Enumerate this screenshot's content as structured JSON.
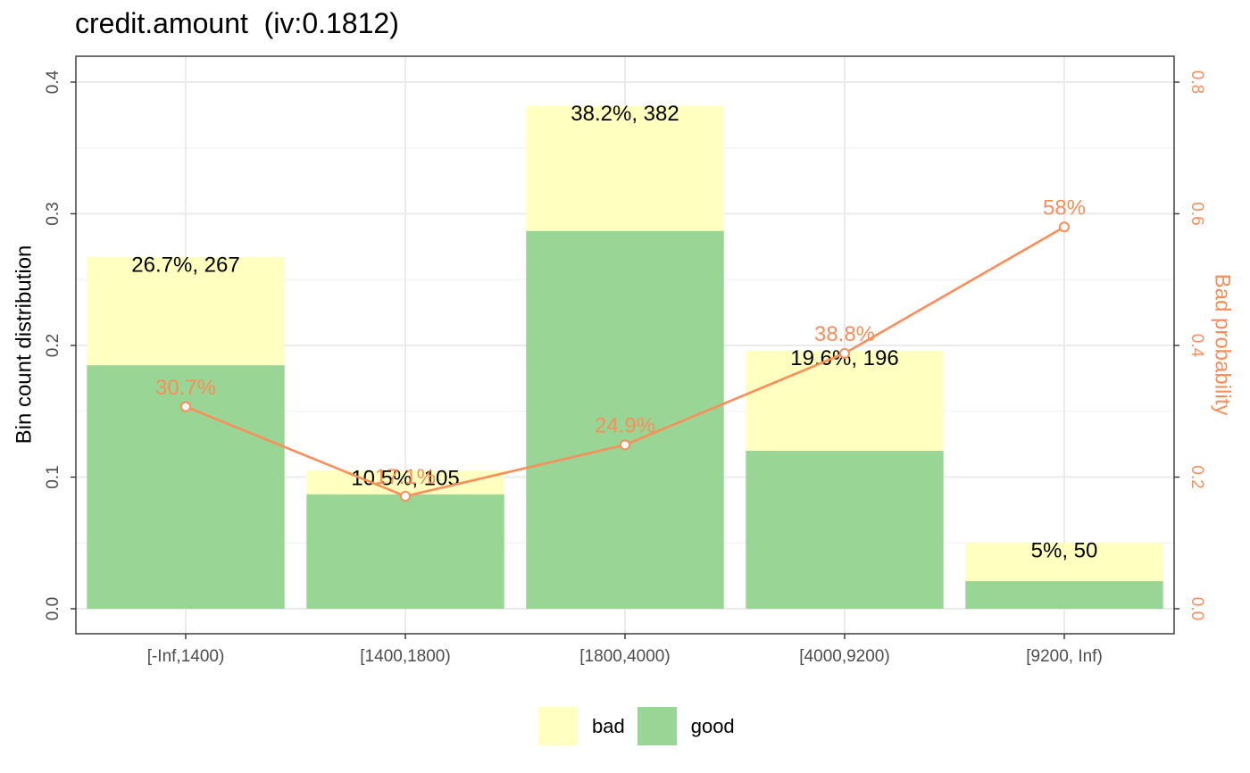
{
  "title": "credit.amount  (iv:0.1812)",
  "colors": {
    "bad": "#FFFFC0",
    "good": "#99D594",
    "line": "#FC8D59",
    "panel_border": "#333333",
    "grid_major": "#EBEBEB",
    "grid_minor": "#F3F3F3",
    "axis_text": "#4D4D4D"
  },
  "legend": {
    "position": "bottom",
    "items": [
      {
        "label": "bad",
        "color_key": "bad"
      },
      {
        "label": "good",
        "color_key": "good"
      }
    ]
  },
  "chart_data": {
    "type": "bar",
    "stacked": true,
    "title": "credit.amount  (iv:0.1812)",
    "ylabel": "Bin count distribution",
    "y2label": "Bad probability",
    "categories": [
      "[-Inf,1400)",
      "[1400,1800)",
      "[1800,4000)",
      "[4000,9200)",
      "[9200, Inf)"
    ],
    "ylim": [
      0,
      0.4
    ],
    "y_ticks": [
      "0.0",
      "0.1",
      "0.2",
      "0.3",
      "0.4"
    ],
    "y2lim": [
      0,
      0.8
    ],
    "y2_ticks": [
      "0.0",
      "0.2",
      "0.4",
      "0.6",
      "0.8"
    ],
    "grid": true,
    "series": [
      {
        "name": "good",
        "values": [
          0.185,
          0.087,
          0.287,
          0.12,
          0.021
        ]
      },
      {
        "name": "bad",
        "values": [
          0.082,
          0.018,
          0.095,
          0.076,
          0.029
        ]
      }
    ],
    "bar_labels": [
      "26.7%, 267",
      "10.5%, 105",
      "38.2%, 382",
      "19.6%, 196",
      "5%, 50"
    ],
    "line": {
      "name": "Bad probability",
      "values": [
        0.307,
        0.171,
        0.249,
        0.388,
        0.58
      ],
      "labels": [
        "30.7%",
        "17.1%",
        "24.9%",
        "38.8%",
        "58%"
      ]
    }
  }
}
